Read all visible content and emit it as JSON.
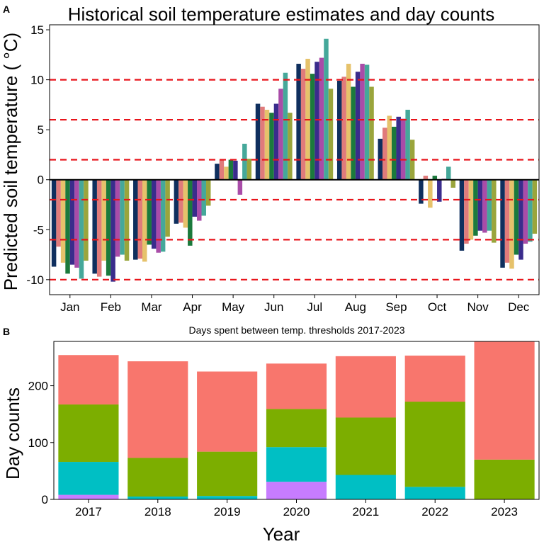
{
  "panels": {
    "a": {
      "letter": "A",
      "title": "Historical soil temperature estimates and day counts",
      "ylabel": "Predicted soil temperature ( °C)"
    },
    "b": {
      "letter": "B",
      "title": "Days spent between temp. thresholds 2017-2023",
      "ylabel": "Day counts",
      "xlabel": "Year"
    }
  },
  "chart_data": [
    {
      "type": "bar",
      "title": "Historical soil temperature estimates and day counts",
      "xlabel": "",
      "ylabel": "Predicted soil temperature ( °C)",
      "ylim": [
        -11.5,
        15.5
      ],
      "yticks": [
        -10,
        -5,
        0,
        5,
        10,
        15
      ],
      "categories": [
        "Jan",
        "Feb",
        "Mar",
        "Apr",
        "May",
        "Jun",
        "Jul",
        "Aug",
        "Sep",
        "Oct",
        "Nov",
        "Dec"
      ],
      "grid": false,
      "reference_lines": {
        "values": [
          -10,
          -6,
          -2,
          2,
          6,
          10
        ],
        "style": "dashed",
        "color": "#e8141b"
      },
      "zero_line": 0,
      "series": [
        {
          "color": "#0f2f5e",
          "values": [
            -8.7,
            -9.4,
            -8.0,
            -4.4,
            1.6,
            7.6,
            11.6,
            9.9,
            4.1,
            -2.4,
            -7.1,
            -8.8
          ]
        },
        {
          "color": "#e07b7b",
          "values": [
            -6.7,
            -9.7,
            -7.9,
            -4.3,
            2.0,
            7.3,
            11.1,
            10.3,
            5.2,
            0.4,
            -6.4,
            -8.3
          ]
        },
        {
          "color": "#e6c26b",
          "values": [
            -8.3,
            -8.1,
            -8.2,
            -4.8,
            1.3,
            7.0,
            12.1,
            11.6,
            6.4,
            -2.8,
            -6.0,
            -8.9
          ]
        },
        {
          "color": "#1b7a3c",
          "values": [
            -9.4,
            -9.6,
            -6.5,
            -6.6,
            2.0,
            6.7,
            10.6,
            9.3,
            5.3,
            0.4,
            -5.6,
            -7.5
          ]
        },
        {
          "color": "#3a2c8c",
          "values": [
            -8.5,
            -10.2,
            -6.9,
            -3.7,
            1.9,
            7.6,
            11.8,
            10.8,
            6.3,
            -2.2,
            -5.1,
            -8.0
          ]
        },
        {
          "color": "#a94ca8",
          "values": [
            -8.8,
            -7.7,
            -7.3,
            -4.1,
            -1.5,
            9.1,
            12.2,
            11.6,
            6.1,
            0.1,
            -5.3,
            -6.4
          ]
        },
        {
          "color": "#45a89a",
          "values": [
            -9.9,
            -7.5,
            -7.2,
            -3.6,
            3.6,
            10.7,
            14.1,
            11.5,
            7.0,
            1.3,
            -5.1,
            -6.2
          ]
        },
        {
          "color": "#9aa53c",
          "values": [
            -8.1,
            -8.1,
            -5.7,
            -2.6,
            2.1,
            6.7,
            9.1,
            9.3,
            4.0,
            -0.8,
            -6.3,
            -5.4
          ]
        }
      ]
    },
    {
      "type": "bar",
      "stacked": true,
      "title": "Days spent between temp. thresholds 2017-2023",
      "xlabel": "Year",
      "ylabel": "Day counts",
      "ylim": [
        0,
        278
      ],
      "yticks": [
        0,
        100,
        200
      ],
      "categories": [
        "2017",
        "2018",
        "2019",
        "2020",
        "2021",
        "2022",
        "2023"
      ],
      "grid": false,
      "series": [
        {
          "color": "#c77cff",
          "values": [
            8,
            0,
            0,
            31,
            0,
            0,
            0
          ]
        },
        {
          "color": "#00bfc4",
          "values": [
            58,
            5,
            6,
            61,
            43,
            22,
            0
          ]
        },
        {
          "color": "#7cae00",
          "values": [
            101,
            68,
            78,
            67,
            101,
            150,
            70
          ]
        },
        {
          "color": "#f8766d",
          "values": [
            87,
            170,
            141,
            80,
            108,
            81,
            208
          ]
        }
      ]
    }
  ]
}
